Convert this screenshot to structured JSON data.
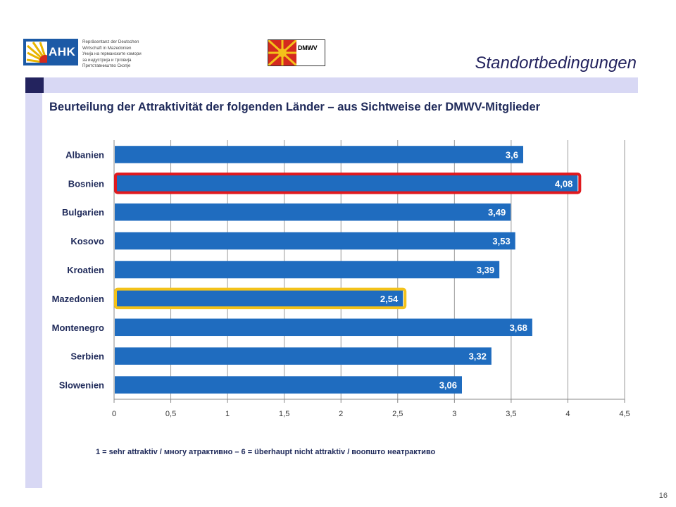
{
  "header": {
    "ahk_logo": {
      "badge_text": "AHK",
      "lines": [
        "Repräsentanz der Deutschen",
        "Wirtschaft in Mazedonien",
        "Унија на германските комори",
        "за индустрија и трговија",
        "Претставништво Скопје"
      ]
    },
    "dmwv_logo": {
      "text": "DMWV"
    },
    "title": "Standortbedingungen"
  },
  "subtitle": "Beurteilung der Attraktivität der folgenden Länder – aus Sichtweise der DMWV-Mitglieder",
  "footnote": "1 = sehr attraktiv  / многу атрактивно – 6 = überhaupt nicht attraktiv / воопшто неатрактиво",
  "page_number": "16",
  "colors": {
    "bar": "#1f6cbf",
    "highlight_red": "#e0191e",
    "highlight_yellow": "#f3c21a",
    "accent_navy": "#23235e",
    "panel_lavender": "#d8d8f4"
  },
  "chart_data": {
    "type": "bar",
    "orientation": "horizontal",
    "categories": [
      "Albanien",
      "Bosnien",
      "Bulgarien",
      "Kosovo",
      "Kroatien",
      "Mazedonien",
      "Montenegro",
      "Serbien",
      "Slowenien"
    ],
    "values": [
      3.6,
      4.08,
      3.49,
      3.53,
      3.39,
      2.54,
      3.68,
      3.32,
      3.06
    ],
    "value_labels": [
      "3,6",
      "4,08",
      "3,49",
      "3,53",
      "3,39",
      "2,54",
      "3,68",
      "3,32",
      "3,06"
    ],
    "highlighted": {
      "Bosnien": "red",
      "Mazedonien": "yellow"
    },
    "xlim": [
      0,
      4.5
    ],
    "xticks": [
      0,
      0.5,
      1,
      1.5,
      2,
      2.5,
      3,
      3.5,
      4,
      4.5
    ],
    "xtick_labels": [
      "0",
      "0,5",
      "1",
      "1,5",
      "2",
      "2,5",
      "3",
      "3,5",
      "4",
      "4,5"
    ],
    "grid": true,
    "xlabel": "",
    "ylabel": ""
  }
}
